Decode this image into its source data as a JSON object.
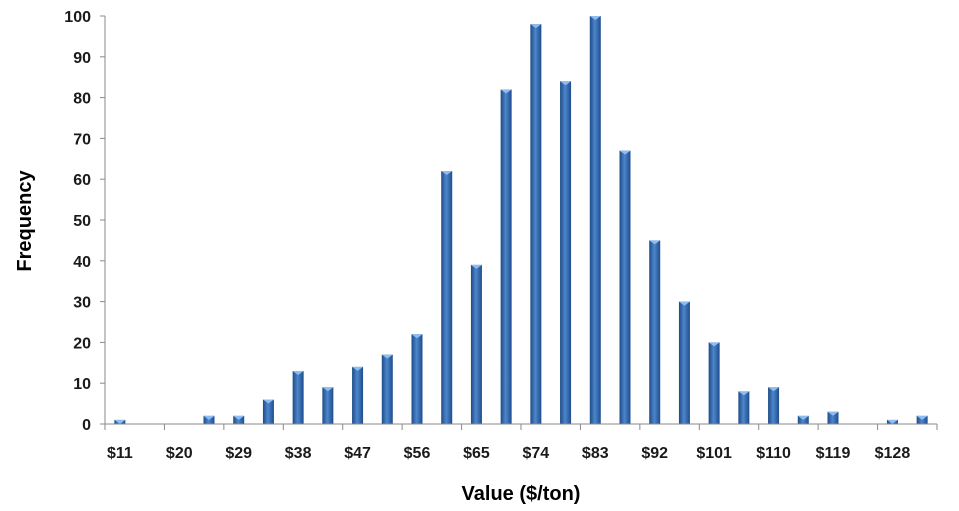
{
  "chart_data": {
    "type": "bar",
    "title": "",
    "xlabel": "Value ($/ton)",
    "ylabel": "Frequency",
    "ylim": [
      0,
      100
    ],
    "yticks": [
      0,
      10,
      20,
      30,
      40,
      50,
      60,
      70,
      80,
      90,
      100
    ],
    "x_tick_labels": [
      "$11",
      "$20",
      "$29",
      "$38",
      "$47",
      "$56",
      "$65",
      "$74",
      "$83",
      "$92",
      "$101",
      "$110",
      "$119",
      "$128"
    ],
    "bins": [
      "$11",
      "$15",
      "$20",
      "$24",
      "$29",
      "$33",
      "$38",
      "$42",
      "$47",
      "$51",
      "$56",
      "$60",
      "$65",
      "$69",
      "$74",
      "$78",
      "$83",
      "$87",
      "$92",
      "$96",
      "$101",
      "$105",
      "$110",
      "$114",
      "$119",
      "$123",
      "$128",
      "$132"
    ],
    "values": [
      1,
      0,
      0,
      2,
      2,
      6,
      13,
      9,
      14,
      17,
      22,
      62,
      39,
      82,
      98,
      84,
      100,
      67,
      45,
      30,
      20,
      8,
      9,
      2,
      3,
      0,
      1,
      2
    ],
    "grid": false,
    "legend": "none",
    "bar_color": "#2f64a8"
  }
}
